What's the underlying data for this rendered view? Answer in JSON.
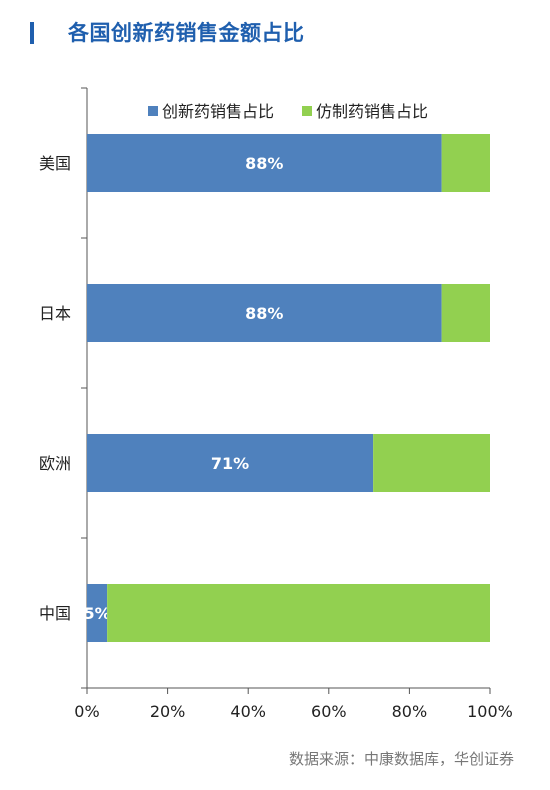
{
  "title": "各国创新药销售金额占比",
  "source": "数据来源：中康数据库，华创证券",
  "colors": {
    "title": "#1f5fae",
    "innovative": "#4f81bd",
    "generic": "#92d050"
  },
  "chart_data": {
    "type": "bar",
    "orientation": "horizontal",
    "stacked": true,
    "percent": true,
    "categories": [
      "美国",
      "日本",
      "欧洲",
      "中国"
    ],
    "series": [
      {
        "name": "创新药销售占比",
        "values": [
          88,
          88,
          71,
          5
        ],
        "labels": [
          "88%",
          "88%",
          "71%",
          "5%"
        ]
      },
      {
        "name": "仿制药销售占比",
        "values": [
          12,
          12,
          29,
          95
        ]
      }
    ],
    "xlim": [
      0,
      100
    ],
    "xticks": [
      "0%",
      "20%",
      "40%",
      "60%",
      "80%",
      "100%"
    ],
    "legend_position": "top"
  }
}
